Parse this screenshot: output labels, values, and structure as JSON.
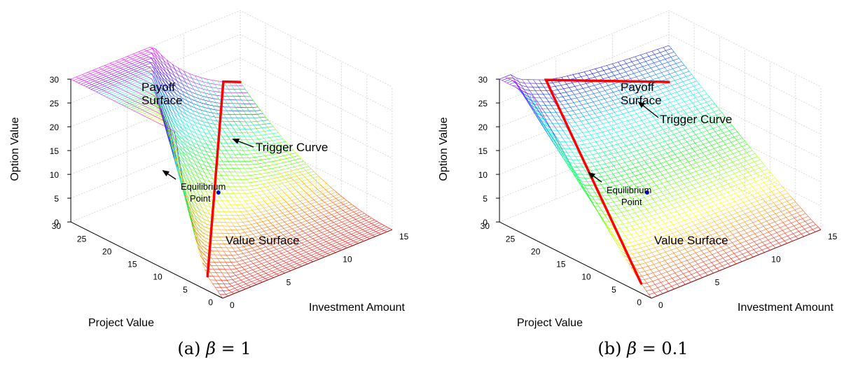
{
  "chart_data": [
    {
      "type": "surface3d",
      "caption_prefix": "(a)",
      "caption_symbol": "β",
      "caption_eq": "= 1",
      "zlabel": "Option Value",
      "xlabel": "Project Value",
      "ylabel": "Investment Amount",
      "x_ticks": [
        "30",
        "25",
        "20",
        "15",
        "10",
        "5",
        "0"
      ],
      "y_ticks": [
        "0",
        "5",
        "10",
        "15"
      ],
      "z_ticks": [
        "0",
        "5",
        "10",
        "15",
        "20",
        "25",
        "30"
      ],
      "xlim": [
        0,
        30
      ],
      "ylim": [
        0,
        15
      ],
      "zlim": [
        0,
        30
      ],
      "beta": 1,
      "annotations": {
        "payoff": [
          "Payoff",
          "Surface"
        ],
        "value": "Value Surface",
        "trigger": "Trigger Curve",
        "equilibrium": [
          "Equilibrium",
          "Point"
        ]
      },
      "equilibrium_point": {
        "x": 12,
        "y": 5,
        "z": 11
      },
      "colors": {
        "trigger_curve": "#ff0000",
        "equilibrium_point": "#0000cc",
        "arrow": "#000000"
      }
    },
    {
      "type": "surface3d",
      "caption_prefix": "(b)",
      "caption_symbol": "β",
      "caption_eq": "= 0.1",
      "zlabel": "Option Value",
      "xlabel": "Project Value",
      "ylabel": "Investment Amount",
      "x_ticks": [
        "30",
        "25",
        "20",
        "15",
        "10",
        "5",
        "0"
      ],
      "y_ticks": [
        "0",
        "5",
        "10",
        "15"
      ],
      "z_ticks": [
        "0",
        "5",
        "10",
        "15",
        "20",
        "25",
        "30"
      ],
      "xlim": [
        0,
        30
      ],
      "ylim": [
        0,
        15
      ],
      "zlim": [
        0,
        30
      ],
      "beta": 0.1,
      "annotations": {
        "payoff": [
          "Payoff",
          "Surface"
        ],
        "value": "Value Surface",
        "trigger": "Trigger Curve",
        "equilibrium": [
          "Equilibrium",
          "Point"
        ]
      },
      "equilibrium_point": {
        "x": 12,
        "y": 5,
        "z": 11
      },
      "colors": {
        "trigger_curve": "#ff0000",
        "equilibrium_point": "#0000cc",
        "arrow": "#000000"
      }
    }
  ]
}
